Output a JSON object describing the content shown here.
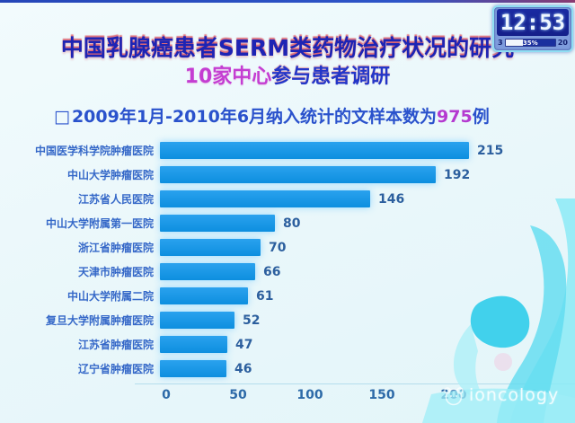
{
  "slide": {
    "title_line1": "中国乳腺癌患者SERM类药物治疗状况的研究",
    "title_line2_highlight": "10家中心",
    "title_line2_rest": "参与患者调研",
    "bullet_marker": "□",
    "bullet_text": "2009年1月-2010年6月纳入统计的文样本数为",
    "bullet_value": "975",
    "bullet_suffix": "例"
  },
  "chart_data": {
    "type": "bar",
    "orientation": "horizontal",
    "title": "",
    "xlabel": "",
    "ylabel": "",
    "categories": [
      "中国医学科学院肿瘤医院",
      "中山大学肿瘤医院",
      "江苏省人民医院",
      "中山大学附属第一医院",
      "浙江省肿瘤医院",
      "天津市肿瘤医院",
      "中山大学附属二院",
      "复旦大学附属肿瘤医院",
      "江苏省肿瘤医院",
      "辽宁省肿瘤医院"
    ],
    "values": [
      215,
      192,
      146,
      80,
      70,
      66,
      61,
      52,
      47,
      46
    ],
    "xlim": [
      0,
      250
    ],
    "xticks": [
      0,
      50,
      100,
      150,
      200,
      250
    ],
    "grid": false,
    "legend": false,
    "bar_color": "#0d8fdf"
  },
  "overlay_clock": {
    "time": "12:53",
    "left_label": "3",
    "right_label": "20",
    "progress_label": "35%",
    "progress_fill_percent": 35
  },
  "watermark": {
    "brand": "ioncology"
  }
}
